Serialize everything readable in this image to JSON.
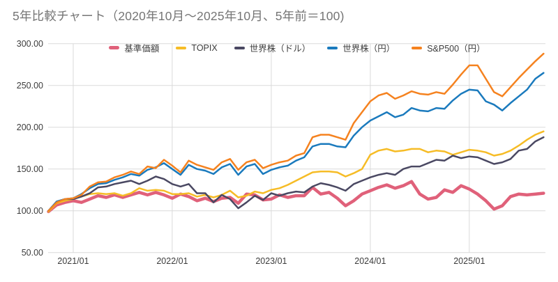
{
  "title": "5年比較チャート（2020年10月～2025年10月、5年前＝100)",
  "chart_data": {
    "type": "line",
    "title": "5年比較チャート（2020年10月～2025年10月、5年前＝100)",
    "xlabel": "",
    "ylabel": "",
    "ylim": [
      50,
      300
    ],
    "grid": true,
    "legend_position": "top",
    "grid_color": "#dadada",
    "x": [
      "2020/10",
      "2020/11",
      "2020/12",
      "2021/01",
      "2021/02",
      "2021/03",
      "2021/04",
      "2021/05",
      "2021/06",
      "2021/07",
      "2021/08",
      "2021/09",
      "2021/10",
      "2021/11",
      "2021/12",
      "2022/01",
      "2022/02",
      "2022/03",
      "2022/04",
      "2022/05",
      "2022/06",
      "2022/07",
      "2022/08",
      "2022/09",
      "2022/10",
      "2022/11",
      "2022/12",
      "2023/01",
      "2023/02",
      "2023/03",
      "2023/04",
      "2023/05",
      "2023/06",
      "2023/07",
      "2023/08",
      "2023/09",
      "2023/10",
      "2023/11",
      "2023/12",
      "2024/01",
      "2024/02",
      "2024/03",
      "2024/04",
      "2024/05",
      "2024/06",
      "2024/07",
      "2024/08",
      "2024/09",
      "2024/10",
      "2024/11",
      "2024/12",
      "2025/01",
      "2025/02",
      "2025/03",
      "2025/04",
      "2025/05",
      "2025/06",
      "2025/07",
      "2025/08",
      "2025/09",
      "2025/10"
    ],
    "y_ticks": [
      {
        "value": 300,
        "label": "300.00"
      },
      {
        "value": 250,
        "label": "250.00"
      },
      {
        "value": 200,
        "label": "200.00"
      },
      {
        "value": 150,
        "label": "150.00"
      },
      {
        "value": 100,
        "label": "100.00"
      },
      {
        "value": 50,
        "label": "50.00"
      }
    ],
    "x_ticks": [
      {
        "month_index": 3,
        "label": "2021/01"
      },
      {
        "month_index": 15,
        "label": "2022/01"
      },
      {
        "month_index": 27,
        "label": "2023/01"
      },
      {
        "month_index": 39,
        "label": "2024/01"
      },
      {
        "month_index": 51,
        "label": "2025/01"
      }
    ],
    "series": [
      {
        "name": "基準価額",
        "color": "#e0617a",
        "stroke_width": 4.5,
        "values": [
          99,
          107,
          110,
          112,
          110,
          114,
          118,
          116,
          119,
          116,
          119,
          122,
          119,
          122,
          119,
          115,
          120,
          117,
          112,
          115,
          111,
          115,
          116,
          109,
          120,
          119,
          113,
          114,
          119,
          116,
          118,
          118,
          128,
          120,
          122,
          115,
          106,
          112,
          120,
          124,
          128,
          131,
          127,
          130,
          135,
          120,
          114,
          116,
          125,
          122,
          130,
          126,
          120,
          112,
          102,
          106,
          117,
          120,
          119,
          120,
          121
        ]
      },
      {
        "name": "TOPIX",
        "color": "#f6bc26",
        "stroke_width": 2.5,
        "values": [
          99,
          109,
          112,
          114,
          117,
          120,
          121,
          120,
          121,
          118,
          121,
          127,
          124,
          125,
          124,
          120,
          120,
          121,
          117,
          119,
          116,
          119,
          124,
          116,
          118,
          123,
          121,
          125,
          127,
          131,
          136,
          141,
          146,
          147,
          147,
          146,
          141,
          145,
          150,
          167,
          172,
          174,
          171,
          172,
          174,
          174,
          170,
          172,
          171,
          167,
          170,
          173,
          172,
          170,
          166,
          168,
          172,
          178,
          185,
          191,
          195
        ]
      },
      {
        "name": "世界株（ドル）",
        "color": "#4a4862",
        "stroke_width": 2.5,
        "values": [
          100,
          111,
          114,
          114,
          117,
          121,
          128,
          129,
          132,
          134,
          136,
          132,
          136,
          141,
          138,
          132,
          129,
          132,
          121,
          121,
          110,
          119,
          114,
          103,
          110,
          118,
          113,
          121,
          118,
          121,
          123,
          122,
          129,
          133,
          131,
          128,
          124,
          132,
          136,
          140,
          143,
          145,
          143,
          150,
          153,
          153,
          157,
          161,
          160,
          166,
          163,
          165,
          164,
          160,
          156,
          158,
          162,
          172,
          174,
          183,
          188
        ]
      },
      {
        "name": "世界株（円）",
        "color": "#1a7abd",
        "stroke_width": 2.5,
        "values": [
          100,
          111,
          114,
          115,
          120,
          127,
          132,
          133,
          137,
          140,
          144,
          142,
          149,
          152,
          157,
          150,
          143,
          155,
          150,
          148,
          144,
          152,
          156,
          143,
          153,
          156,
          144,
          149,
          152,
          154,
          160,
          164,
          177,
          180,
          180,
          177,
          176,
          190,
          200,
          208,
          213,
          218,
          212,
          215,
          223,
          220,
          219,
          223,
          222,
          232,
          240,
          245,
          244,
          231,
          227,
          220,
          229,
          237,
          245,
          258,
          265
        ]
      },
      {
        "name": "S&P500（円）",
        "color": "#f5821f",
        "stroke_width": 2.5,
        "values": [
          100,
          110,
          114,
          115,
          119,
          129,
          134,
          135,
          140,
          143,
          147,
          144,
          153,
          151,
          161,
          154,
          146,
          160,
          155,
          152,
          149,
          158,
          162,
          149,
          158,
          161,
          151,
          155,
          158,
          160,
          166,
          169,
          188,
          191,
          191,
          188,
          185,
          205,
          218,
          231,
          238,
          241,
          234,
          238,
          243,
          240,
          239,
          242,
          240,
          251,
          263,
          274,
          274,
          258,
          242,
          237,
          248,
          259,
          269,
          279,
          288
        ]
      }
    ]
  }
}
